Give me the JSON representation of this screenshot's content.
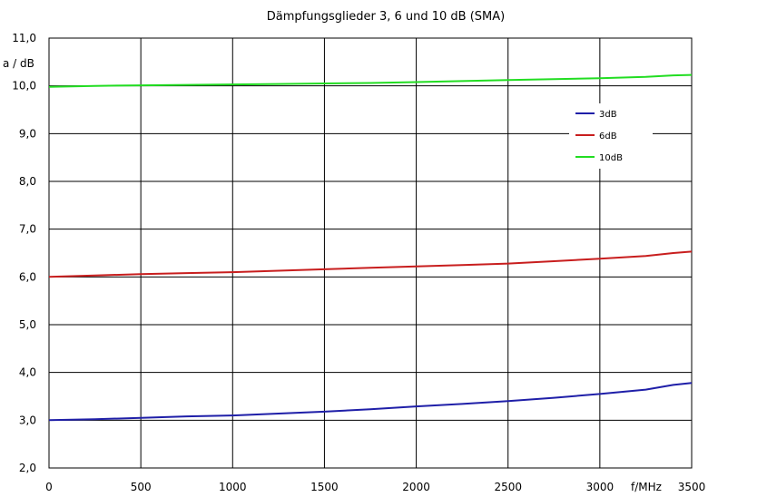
{
  "chart_data": {
    "type": "line",
    "title": "Dämpfungsglieder 3, 6 und 10 dB (SMA)",
    "ylabel": "a  / dB",
    "xlabel": "f/MHz",
    "xlim": [
      0,
      3500
    ],
    "ylim": [
      2.0,
      11.0
    ],
    "x_ticks": [
      "0",
      "500",
      "1000",
      "1500",
      "2000",
      "2500",
      "3000",
      "3500"
    ],
    "y_ticks": [
      "2,0",
      "3,0",
      "4,0",
      "5,0",
      "6,0",
      "7,0",
      "8,0",
      "9,0",
      "10,0",
      "11,0"
    ],
    "grid": true,
    "legend_position": "right",
    "x": [
      0,
      250,
      500,
      750,
      1000,
      1250,
      1500,
      1750,
      2000,
      2250,
      2500,
      2750,
      3000,
      3250,
      3400,
      3500
    ],
    "series": [
      {
        "name": "3dB",
        "color": "#1f1fa8",
        "values": [
          3.0,
          3.02,
          3.05,
          3.08,
          3.1,
          3.14,
          3.18,
          3.23,
          3.29,
          3.34,
          3.4,
          3.47,
          3.55,
          3.64,
          3.74,
          3.78
        ]
      },
      {
        "name": "6dB",
        "color": "#c81e1e",
        "values": [
          6.0,
          6.03,
          6.06,
          6.08,
          6.1,
          6.13,
          6.16,
          6.19,
          6.22,
          6.25,
          6.28,
          6.33,
          6.38,
          6.44,
          6.5,
          6.53
        ]
      },
      {
        "name": "10dB",
        "color": "#22dd22",
        "values": [
          9.98,
          10.0,
          10.01,
          10.02,
          10.03,
          10.04,
          10.05,
          10.06,
          10.08,
          10.1,
          10.12,
          10.14,
          10.16,
          10.19,
          10.22,
          10.23
        ]
      }
    ]
  }
}
